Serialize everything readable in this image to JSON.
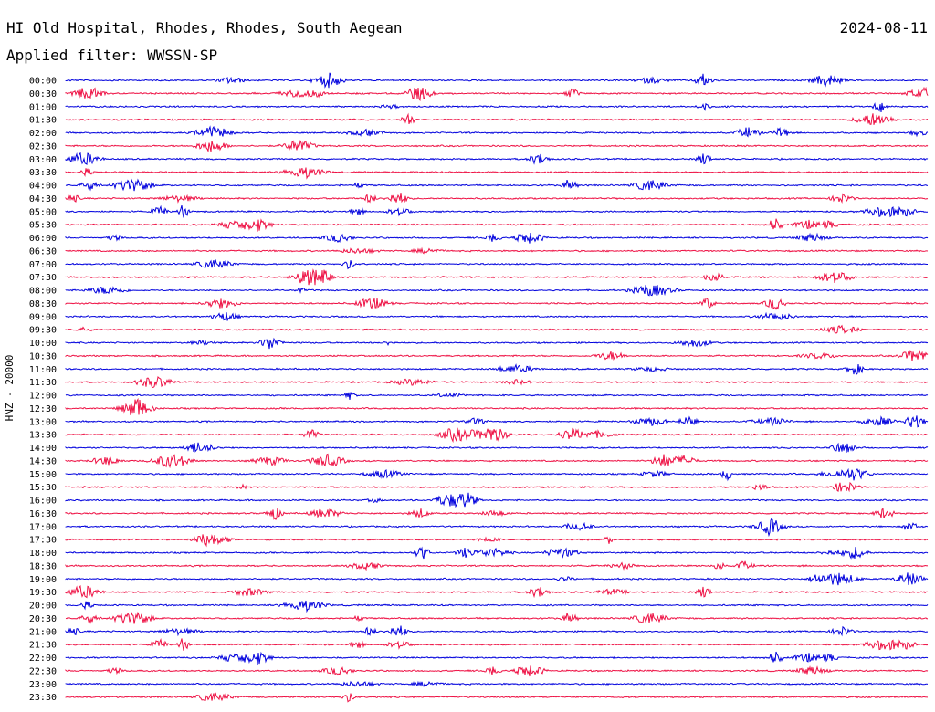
{
  "header": {
    "station": "HI Old Hospital, Rhodes, Rhodes, South Aegean",
    "date": "2024-08-11",
    "filter": "Applied filter: WWSSN-SP"
  },
  "chart_data": {
    "type": "line",
    "ylabel": "HNZ - 20000",
    "row_labels": [
      "00:00",
      "00:30",
      "01:00",
      "01:30",
      "02:00",
      "02:30",
      "03:00",
      "03:30",
      "04:00",
      "04:30",
      "05:00",
      "05:30",
      "06:00",
      "06:30",
      "07:00",
      "07:30",
      "08:00",
      "08:30",
      "09:00",
      "09:30",
      "10:00",
      "10:30",
      "11:00",
      "11:30",
      "12:00",
      "12:30",
      "13:00",
      "13:30",
      "14:00",
      "14:30",
      "15:00",
      "15:30",
      "16:00",
      "16:30",
      "17:00",
      "17:30",
      "18:00",
      "18:30",
      "19:00",
      "19:30",
      "20:00",
      "20:30",
      "21:00",
      "21:30",
      "22:00",
      "22:30",
      "23:00",
      "23:30"
    ],
    "series_colors": [
      "#0000dd",
      "#ee1144"
    ]
  }
}
